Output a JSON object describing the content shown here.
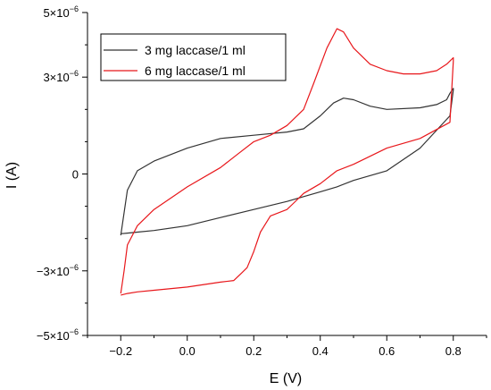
{
  "chart_data": {
    "type": "line",
    "xlabel": "E (V)",
    "ylabel": "I (A)",
    "xlim": [
      -0.3,
      0.9
    ],
    "ylim": [
      -5e-06,
      5e-06
    ],
    "x_ticks": [
      -0.2,
      0.0,
      0.2,
      0.4,
      0.6,
      0.8
    ],
    "x_tick_labels": [
      "−0.2",
      "0.0",
      "0.2",
      "0.4",
      "0.6",
      "0.8"
    ],
    "y_ticks": [
      -5e-06,
      -3e-06,
      0,
      3e-06,
      5e-06
    ],
    "y_tick_labels": [
      {
        "base": "−5×10",
        "exp": "−6"
      },
      {
        "base": "−3×10",
        "exp": "−6"
      },
      {
        "base": "0",
        "exp": ""
      },
      {
        "base": "3×10",
        "exp": "−6"
      },
      {
        "base": "5×10",
        "exp": "−6"
      }
    ],
    "grid": false,
    "legend_position": "top-left",
    "series": [
      {
        "name": "3 mg laccase/1 ml",
        "color": "#333333",
        "x": [
          -0.2,
          -0.19,
          -0.18,
          -0.15,
          -0.1,
          0.0,
          0.1,
          0.2,
          0.3,
          0.35,
          0.4,
          0.44,
          0.47,
          0.5,
          0.55,
          0.6,
          0.7,
          0.75,
          0.78,
          0.79,
          0.8,
          0.8,
          0.79,
          0.7,
          0.6,
          0.5,
          0.45,
          0.4,
          0.35,
          0.3,
          0.2,
          0.1,
          0.0,
          -0.1,
          -0.15,
          -0.18,
          -0.2
        ],
        "y": [
          -1.9e-06,
          -1.2e-06,
          -5e-07,
          1e-07,
          4e-07,
          8e-07,
          1.1e-06,
          1.2e-06,
          1.3e-06,
          1.4e-06,
          1.8e-06,
          2.2e-06,
          2.35e-06,
          2.3e-06,
          2.1e-06,
          2e-06,
          2.05e-06,
          2.15e-06,
          2.3e-06,
          2.5e-06,
          2.65e-06,
          2.6e-06,
          1.8e-06,
          8e-07,
          1e-07,
          -2e-07,
          -4e-07,
          -5.5e-07,
          -7e-07,
          -8.5e-07,
          -1.1e-06,
          -1.35e-06,
          -1.6e-06,
          -1.75e-06,
          -1.8e-06,
          -1.83e-06,
          -1.85e-06
        ]
      },
      {
        "name": "6 mg laccase/1 ml",
        "color": "#e8171b",
        "x": [
          -0.2,
          -0.19,
          -0.18,
          -0.15,
          -0.1,
          0.0,
          0.1,
          0.15,
          0.2,
          0.25,
          0.3,
          0.35,
          0.38,
          0.42,
          0.45,
          0.47,
          0.5,
          0.55,
          0.6,
          0.65,
          0.7,
          0.75,
          0.78,
          0.79,
          0.8,
          0.8,
          0.79,
          0.7,
          0.6,
          0.5,
          0.45,
          0.4,
          0.35,
          0.32,
          0.3,
          0.25,
          0.22,
          0.2,
          0.18,
          0.16,
          0.14,
          0.1,
          0.0,
          -0.1,
          -0.15,
          -0.18,
          -0.2
        ],
        "y": [
          -3.7e-06,
          -3e-06,
          -2.2e-06,
          -1.6e-06,
          -1.1e-06,
          -4e-07,
          2e-07,
          6e-07,
          1e-06,
          1.2e-06,
          1.5e-06,
          2e-06,
          2.8e-06,
          3.9e-06,
          4.5e-06,
          4.4e-06,
          3.9e-06,
          3.4e-06,
          3.2e-06,
          3.1e-06,
          3.1e-06,
          3.2e-06,
          3.4e-06,
          3.5e-06,
          3.6e-06,
          3.5e-06,
          1.6e-06,
          1.1e-06,
          8e-07,
          3e-07,
          1e-07,
          -3e-07,
          -6e-07,
          -9e-07,
          -1.1e-06,
          -1.3e-06,
          -1.8e-06,
          -2.4e-06,
          -2.9e-06,
          -3.1e-06,
          -3.3e-06,
          -3.35e-06,
          -3.5e-06,
          -3.6e-06,
          -3.65e-06,
          -3.7e-06,
          -3.75e-06
        ]
      }
    ]
  }
}
